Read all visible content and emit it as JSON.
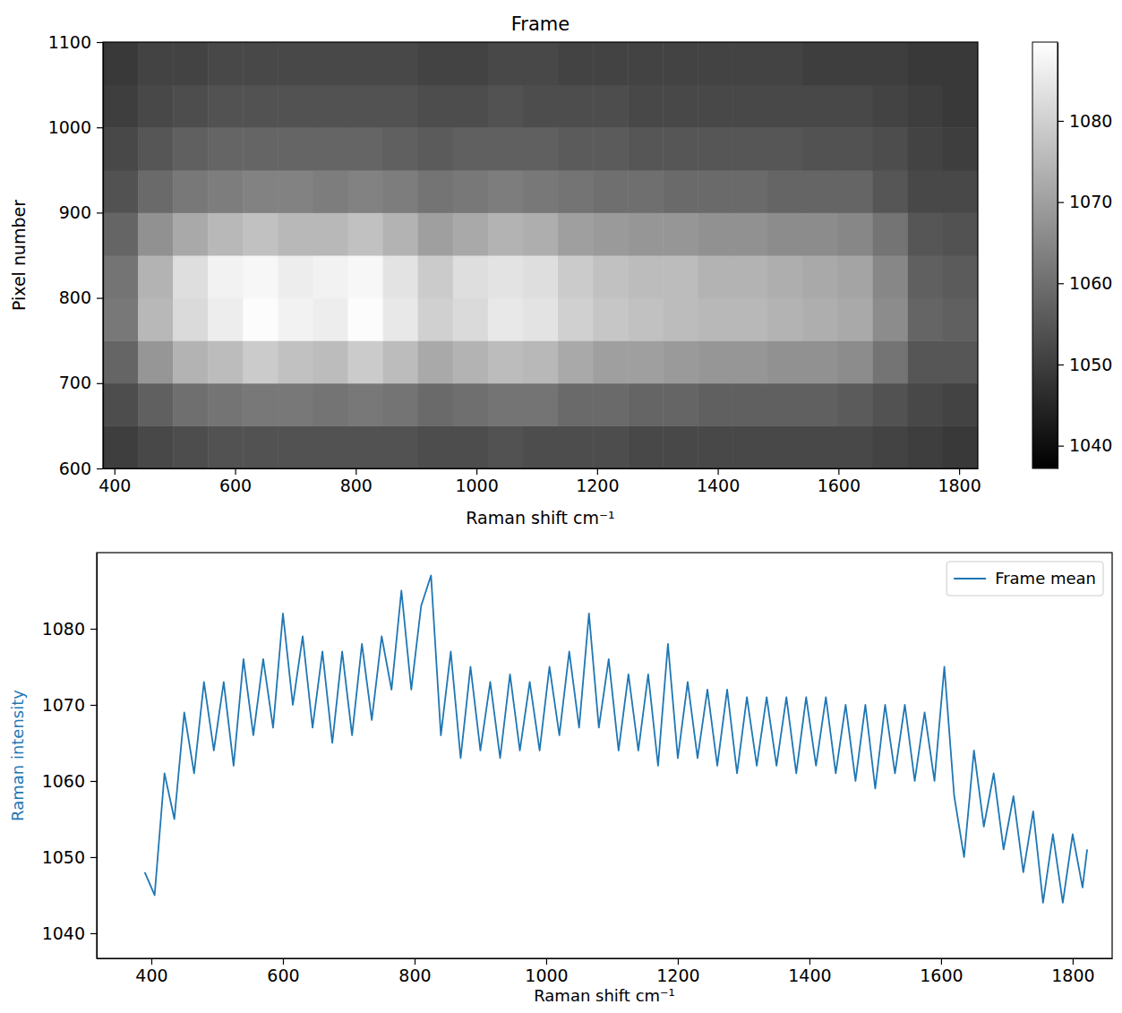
{
  "chart_data": [
    {
      "type": "heatmap",
      "title": "Frame",
      "xlabel": "Raman shift cm⁻¹",
      "ylabel": "Pixel number",
      "xlim": [
        381,
        1831
      ],
      "ylim": [
        600,
        1100
      ],
      "xticks": [
        400,
        600,
        800,
        1000,
        1200,
        1400,
        1600,
        1800
      ],
      "yticks": [
        600,
        700,
        800,
        900,
        1000,
        1100
      ],
      "x_edges": [
        381,
        439,
        497,
        555,
        613,
        671,
        729,
        787,
        845,
        903,
        961,
        1019,
        1077,
        1135,
        1193,
        1251,
        1309,
        1367,
        1425,
        1483,
        1541,
        1599,
        1657,
        1715,
        1773,
        1831
      ],
      "y_edges": [
        600,
        650,
        700,
        750,
        800,
        850,
        900,
        950,
        1000,
        1050,
        1100
      ],
      "z": [
        [
          1050,
          1052,
          1053,
          1054,
          1054,
          1054,
          1054,
          1054,
          1054,
          1053,
          1053,
          1054,
          1053,
          1053,
          1053,
          1052,
          1052,
          1052,
          1052,
          1052,
          1052,
          1052,
          1051,
          1050,
          1049
        ],
        [
          1053,
          1057,
          1060,
          1061,
          1062,
          1062,
          1061,
          1062,
          1061,
          1059,
          1060,
          1061,
          1061,
          1059,
          1059,
          1058,
          1058,
          1057,
          1057,
          1057,
          1057,
          1056,
          1054,
          1052,
          1051
        ],
        [
          1058,
          1068,
          1074,
          1076,
          1079,
          1077,
          1076,
          1079,
          1076,
          1072,
          1074,
          1076,
          1075,
          1072,
          1070,
          1070,
          1069,
          1068,
          1068,
          1067,
          1067,
          1066,
          1061,
          1055,
          1055
        ],
        [
          1062,
          1075,
          1082,
          1086,
          1089,
          1087,
          1086,
          1089,
          1085,
          1080,
          1082,
          1085,
          1084,
          1080,
          1078,
          1077,
          1076,
          1075,
          1075,
          1074,
          1073,
          1072,
          1066,
          1058,
          1057
        ],
        [
          1061,
          1074,
          1083,
          1087,
          1088,
          1086,
          1087,
          1088,
          1084,
          1079,
          1083,
          1084,
          1083,
          1079,
          1077,
          1076,
          1076,
          1074,
          1074,
          1073,
          1072,
          1071,
          1065,
          1057,
          1056
        ],
        [
          1058,
          1067,
          1072,
          1075,
          1077,
          1075,
          1075,
          1077,
          1074,
          1070,
          1072,
          1074,
          1073,
          1070,
          1069,
          1068,
          1068,
          1067,
          1067,
          1066,
          1066,
          1065,
          1061,
          1055,
          1054
        ],
        [
          1054,
          1059,
          1062,
          1063,
          1064,
          1064,
          1063,
          1064,
          1063,
          1061,
          1062,
          1063,
          1062,
          1061,
          1060,
          1060,
          1059,
          1059,
          1059,
          1058,
          1058,
          1058,
          1055,
          1052,
          1052
        ],
        [
          1052,
          1055,
          1057,
          1058,
          1058,
          1058,
          1058,
          1058,
          1057,
          1056,
          1057,
          1057,
          1057,
          1056,
          1056,
          1055,
          1055,
          1055,
          1055,
          1055,
          1054,
          1054,
          1053,
          1051,
          1050
        ],
        [
          1050,
          1052,
          1053,
          1054,
          1054,
          1054,
          1054,
          1054,
          1054,
          1053,
          1053,
          1054,
          1053,
          1053,
          1053,
          1052,
          1052,
          1052,
          1052,
          1052,
          1052,
          1052,
          1051,
          1050,
          1049
        ],
        [
          1049,
          1051,
          1051,
          1052,
          1052,
          1052,
          1052,
          1052,
          1052,
          1051,
          1051,
          1052,
          1052,
          1051,
          1051,
          1051,
          1051,
          1051,
          1051,
          1051,
          1050,
          1050,
          1050,
          1049,
          1049
        ]
      ],
      "clim": [
        1037.2,
        1089.7
      ],
      "cticks": [
        1040,
        1050,
        1060,
        1070,
        1080
      ]
    },
    {
      "type": "line",
      "xlabel": "Raman shift cm⁻¹",
      "ylabel": "Raman intensity",
      "xlim": [
        317,
        1860
      ],
      "ylim": [
        1036.7,
        1090
      ],
      "xticks": [
        400,
        600,
        800,
        1000,
        1200,
        1400,
        1600,
        1800
      ],
      "yticks": [
        1040,
        1050,
        1060,
        1070,
        1080
      ],
      "legend": "upper right",
      "x": [
        390,
        405,
        420,
        435,
        450,
        465,
        480,
        495,
        510,
        525,
        540,
        555,
        570,
        585,
        600,
        615,
        630,
        645,
        660,
        675,
        690,
        705,
        720,
        735,
        750,
        765,
        780,
        795,
        810,
        825,
        840,
        855,
        870,
        885,
        900,
        915,
        930,
        945,
        960,
        975,
        990,
        1005,
        1020,
        1035,
        1050,
        1065,
        1080,
        1095,
        1110,
        1125,
        1140,
        1155,
        1170,
        1185,
        1200,
        1215,
        1230,
        1245,
        1260,
        1275,
        1290,
        1305,
        1320,
        1335,
        1350,
        1365,
        1380,
        1395,
        1410,
        1425,
        1440,
        1455,
        1470,
        1485,
        1500,
        1515,
        1530,
        1545,
        1560,
        1575,
        1590,
        1605,
        1620,
        1635,
        1650,
        1665,
        1680,
        1695,
        1710,
        1725,
        1740,
        1755,
        1770,
        1785,
        1800,
        1815,
        1822
      ],
      "series": [
        {
          "name": "Frame mean",
          "color": "#1f77b4",
          "values": [
            1048,
            1045,
            1061,
            1055,
            1069,
            1061,
            1073,
            1064,
            1073,
            1062,
            1076,
            1066,
            1076,
            1067,
            1082,
            1070,
            1079,
            1067,
            1077,
            1065,
            1077,
            1066,
            1078,
            1068,
            1079,
            1072,
            1085,
            1072,
            1083,
            1087,
            1066,
            1077,
            1063,
            1075,
            1064,
            1073,
            1063,
            1074,
            1064,
            1073,
            1064,
            1075,
            1066,
            1077,
            1067,
            1082,
            1067,
            1076,
            1064,
            1074,
            1064,
            1074,
            1062,
            1078,
            1063,
            1073,
            1063,
            1072,
            1062,
            1072,
            1061,
            1071,
            1062,
            1071,
            1062,
            1071,
            1061,
            1071,
            1062,
            1071,
            1061,
            1070,
            1060,
            1070,
            1059,
            1070,
            1061,
            1070,
            1060,
            1069,
            1060,
            1075,
            1058,
            1050,
            1064,
            1054,
            1061,
            1051,
            1058,
            1048,
            1056,
            1044,
            1053,
            1044,
            1053,
            1046,
            1051
          ]
        }
      ]
    }
  ]
}
